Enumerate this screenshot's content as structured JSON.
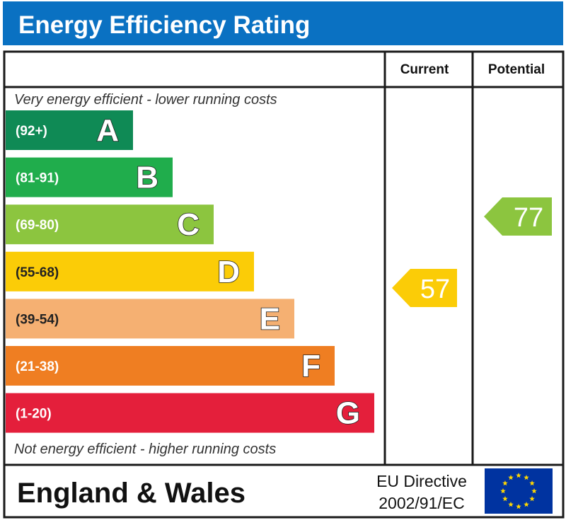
{
  "title": "Energy Efficiency Rating",
  "columns": {
    "current": "Current",
    "potential": "Potential"
  },
  "top_note": "Very energy efficient - lower running costs",
  "bottom_note": "Not energy efficient - higher running costs",
  "footer": {
    "region": "England & Wales",
    "directive_line1": "EU Directive",
    "directive_line2": "2002/91/EC"
  },
  "colors": {
    "header_bg": "#0a71c2",
    "A": "#0f8a55",
    "B": "#20ad4c",
    "C": "#8cc53f",
    "D": "#fbcc07",
    "E": "#f5b072",
    "F": "#ef7e22",
    "G": "#e41f3b",
    "eu_flag": "#0033a0",
    "eu_stars": "#ffd700"
  },
  "chart_data": {
    "type": "bar",
    "title": "Energy Efficiency Rating",
    "bands": [
      {
        "letter": "A",
        "range": "(92+)"
      },
      {
        "letter": "B",
        "range": "(81-91)"
      },
      {
        "letter": "C",
        "range": "(69-80)"
      },
      {
        "letter": "D",
        "range": "(55-68)"
      },
      {
        "letter": "E",
        "range": "(39-54)"
      },
      {
        "letter": "F",
        "range": "(21-38)"
      },
      {
        "letter": "G",
        "range": "(1-20)"
      }
    ],
    "current": {
      "label": "Current",
      "value": 57,
      "band": "D"
    },
    "potential": {
      "label": "Potential",
      "value": 77,
      "band": "C"
    }
  }
}
